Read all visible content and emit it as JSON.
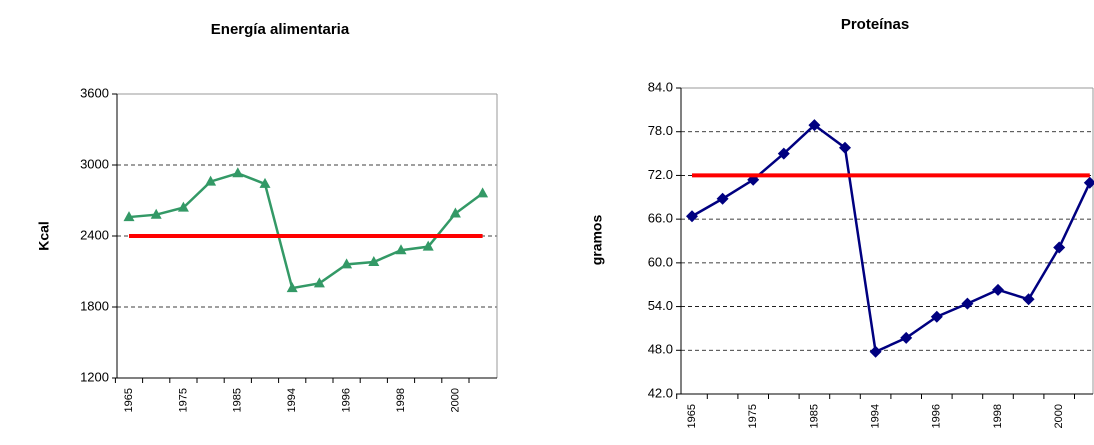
{
  "chart_data": [
    {
      "type": "line",
      "title": "Energía alimentaria",
      "y_label": "Kcal",
      "categories": [
        "1965",
        null,
        "1975",
        null,
        "1985",
        null,
        "1994",
        null,
        "1996",
        null,
        "1998",
        null,
        "2000",
        null
      ],
      "series": [
        {
          "color": "#339966",
          "marker": "triangle",
          "values": [
            2560,
            2580,
            2640,
            2860,
            2930,
            2840,
            1960,
            2000,
            2160,
            2180,
            2280,
            2310,
            2590,
            2760
          ]
        },
        {
          "color": "#ff0000",
          "marker": "none",
          "values": [
            2400,
            2400,
            2400,
            2400,
            2400,
            2400,
            2400,
            2400,
            2400,
            2400,
            2400,
            2400,
            2400,
            2400
          ]
        }
      ],
      "ylim": [
        1200,
        3600
      ],
      "yticks": [
        1200,
        1800,
        2400,
        3000,
        3600
      ],
      "grid": true
    },
    {
      "type": "line",
      "title": "Proteínas",
      "y_label": "gramos",
      "categories": [
        "1965",
        null,
        "1975",
        null,
        "1985",
        null,
        "1994",
        null,
        "1996",
        null,
        "1998",
        null,
        "2000",
        null
      ],
      "series": [
        {
          "color": "#000080",
          "marker": "diamond",
          "values": [
            66.4,
            68.8,
            71.4,
            75.0,
            78.9,
            75.8,
            47.8,
            49.7,
            52.6,
            54.4,
            56.3,
            55.0,
            62.1,
            71.0
          ]
        },
        {
          "color": "#ff0000",
          "marker": "none",
          "values": [
            72.0,
            72.0,
            72.0,
            72.0,
            72.0,
            72.0,
            72.0,
            72.0,
            72.0,
            72.0,
            72.0,
            72.0,
            72.0,
            72.0
          ]
        }
      ],
      "ylim": [
        42,
        84
      ],
      "yticks": [
        {
          "value": 42,
          "label": "42.0"
        },
        {
          "value": 48,
          "label": "48.0"
        },
        {
          "value": 54,
          "label": "54.0"
        },
        {
          "value": 60,
          "label": "60.0"
        },
        {
          "value": 66,
          "label": "66.0"
        },
        {
          "value": 72,
          "label": "72.0"
        },
        {
          "value": 78,
          "label": "78.0"
        },
        {
          "value": 84,
          "label": "84.0"
        }
      ],
      "grid": true
    }
  ]
}
